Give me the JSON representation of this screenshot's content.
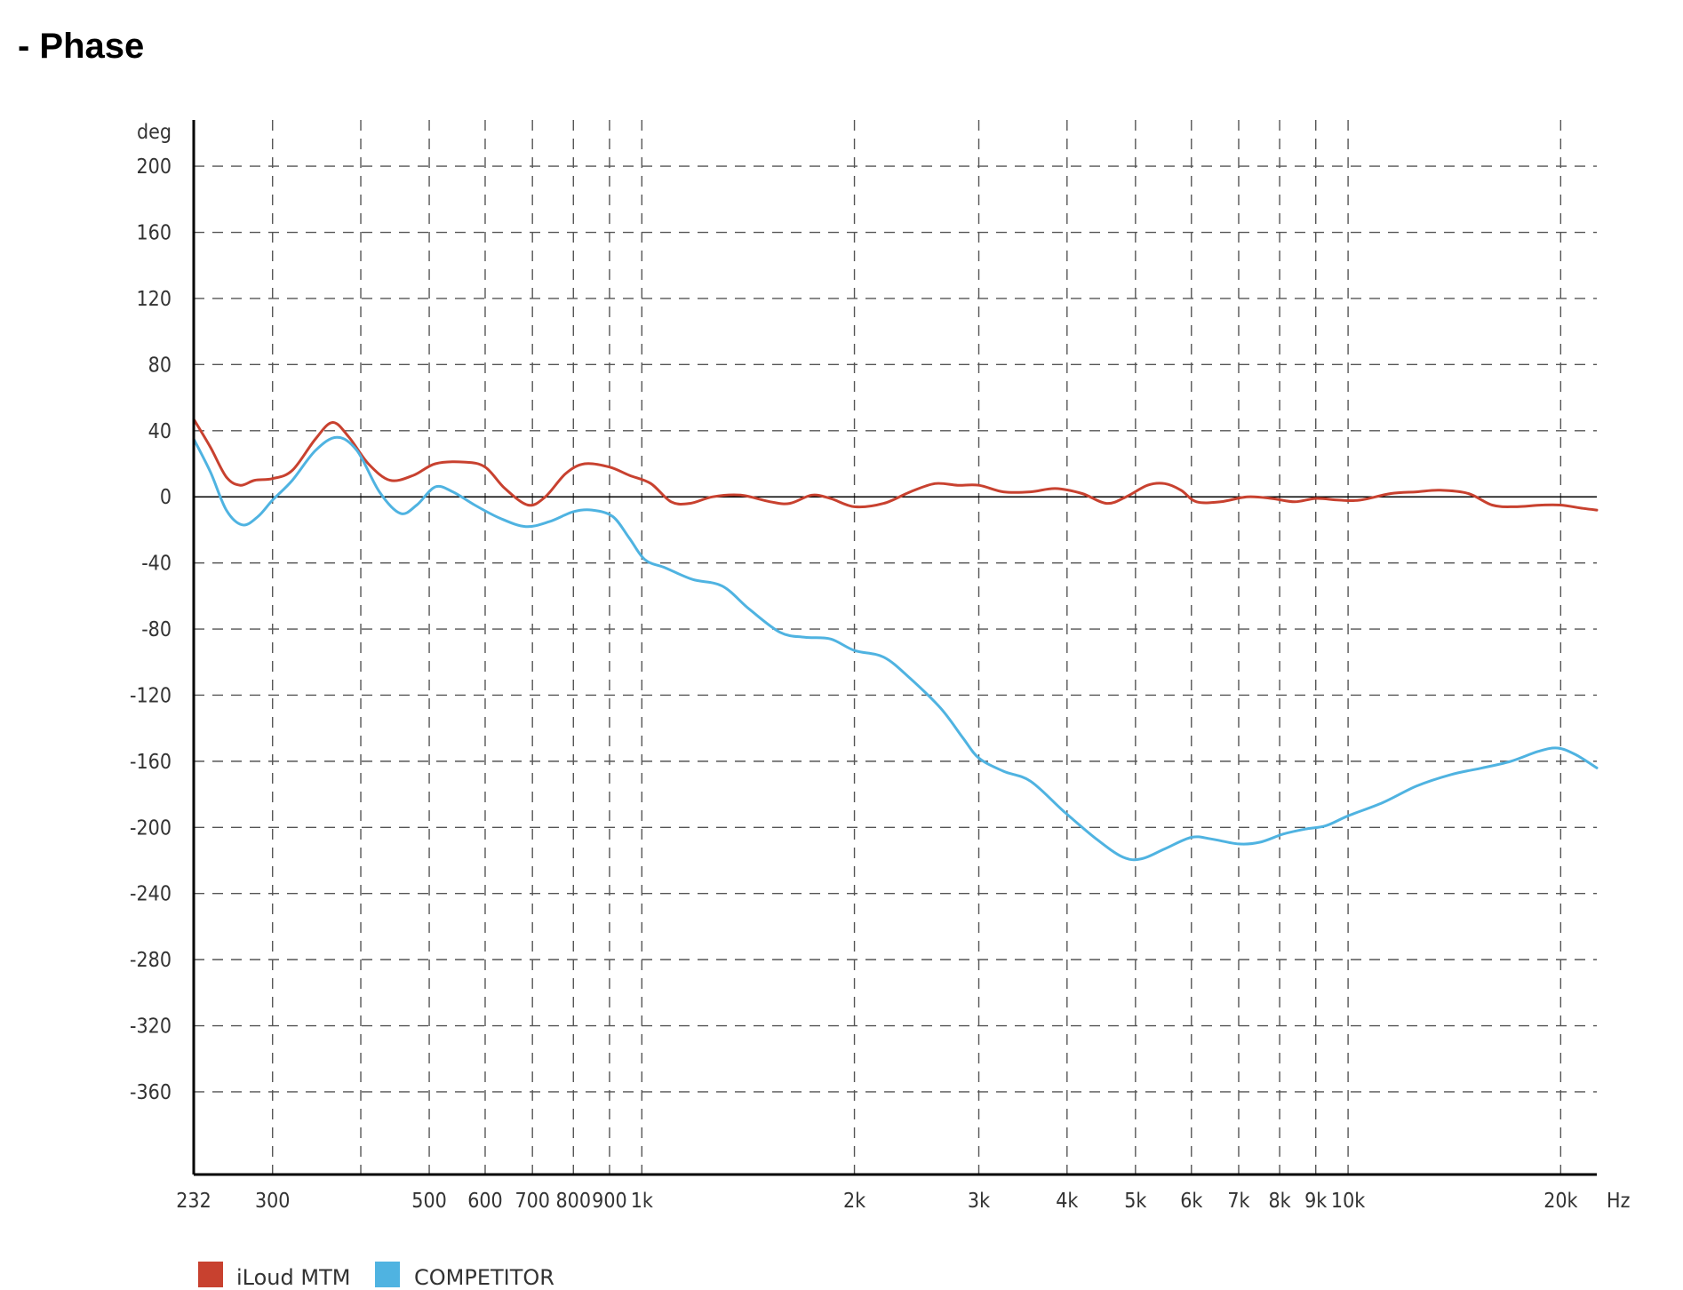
{
  "page": {
    "title": "- Phase"
  },
  "chart_data": {
    "type": "line",
    "title": "",
    "ylabel": "deg",
    "xlabel": "Hz",
    "x_scale": "log",
    "xlim": [
      232,
      22500
    ],
    "ylim": [
      -410,
      228
    ],
    "grid": true,
    "legend_position": "bottom-left",
    "y_ticks": [
      200,
      160,
      120,
      80,
      40,
      0,
      -40,
      -80,
      -120,
      -160,
      -200,
      -240,
      -280,
      -320,
      -360
    ],
    "x_ticks": [
      {
        "value": 232,
        "label": "232"
      },
      {
        "value": 300,
        "label": "300"
      },
      {
        "value": 400,
        "label": ""
      },
      {
        "value": 500,
        "label": "500"
      },
      {
        "value": 600,
        "label": "600"
      },
      {
        "value": 700,
        "label": "700"
      },
      {
        "value": 800,
        "label": "800"
      },
      {
        "value": 900,
        "label": "900"
      },
      {
        "value": 1000,
        "label": "1k"
      },
      {
        "value": 2000,
        "label": "2k"
      },
      {
        "value": 3000,
        "label": "3k"
      },
      {
        "value": 4000,
        "label": "4k"
      },
      {
        "value": 5000,
        "label": "5k"
      },
      {
        "value": 6000,
        "label": "6k"
      },
      {
        "value": 7000,
        "label": "7k"
      },
      {
        "value": 8000,
        "label": "8k"
      },
      {
        "value": 9000,
        "label": "9k"
      },
      {
        "value": 10000,
        "label": "10k"
      },
      {
        "value": 20000,
        "label": "20k"
      }
    ],
    "series": [
      {
        "name": "iLoud MTM",
        "color": "#c8412f",
        "points": [
          [
            232,
            47
          ],
          [
            245,
            30
          ],
          [
            258,
            12
          ],
          [
            270,
            7
          ],
          [
            283,
            10
          ],
          [
            300,
            11
          ],
          [
            320,
            16
          ],
          [
            345,
            35
          ],
          [
            365,
            45
          ],
          [
            385,
            36
          ],
          [
            410,
            20
          ],
          [
            440,
            10
          ],
          [
            475,
            13
          ],
          [
            510,
            20
          ],
          [
            560,
            21
          ],
          [
            600,
            18
          ],
          [
            640,
            5
          ],
          [
            690,
            -5
          ],
          [
            730,
            0
          ],
          [
            780,
            14
          ],
          [
            830,
            20
          ],
          [
            900,
            18
          ],
          [
            960,
            13
          ],
          [
            1030,
            8
          ],
          [
            1100,
            -3
          ],
          [
            1170,
            -4
          ],
          [
            1260,
            0
          ],
          [
            1380,
            1
          ],
          [
            1520,
            -3
          ],
          [
            1620,
            -4
          ],
          [
            1740,
            1
          ],
          [
            1850,
            -1
          ],
          [
            2000,
            -6
          ],
          [
            2200,
            -4
          ],
          [
            2400,
            3
          ],
          [
            2600,
            8
          ],
          [
            2800,
            7
          ],
          [
            3000,
            7
          ],
          [
            3250,
            3
          ],
          [
            3550,
            3
          ],
          [
            3850,
            5
          ],
          [
            4200,
            2
          ],
          [
            4550,
            -4
          ],
          [
            4850,
            0
          ],
          [
            5200,
            7
          ],
          [
            5500,
            8
          ],
          [
            5800,
            4
          ],
          [
            6100,
            -3
          ],
          [
            6600,
            -3
          ],
          [
            7200,
            0
          ],
          [
            7800,
            -1
          ],
          [
            8400,
            -3
          ],
          [
            9000,
            -1
          ],
          [
            9700,
            -2
          ],
          [
            10400,
            -2
          ],
          [
            11500,
            2
          ],
          [
            12500,
            3
          ],
          [
            13500,
            4
          ],
          [
            14800,
            2
          ],
          [
            16000,
            -5
          ],
          [
            17200,
            -6
          ],
          [
            18800,
            -5
          ],
          [
            20000,
            -5
          ],
          [
            21500,
            -7
          ],
          [
            22500,
            -8
          ]
        ]
      },
      {
        "name": "COMPETITOR",
        "color": "#4fb3e1",
        "points": [
          [
            232,
            35
          ],
          [
            245,
            15
          ],
          [
            258,
            -8
          ],
          [
            272,
            -17
          ],
          [
            286,
            -12
          ],
          [
            300,
            -2
          ],
          [
            320,
            10
          ],
          [
            345,
            28
          ],
          [
            370,
            36
          ],
          [
            395,
            28
          ],
          [
            425,
            3
          ],
          [
            455,
            -10
          ],
          [
            480,
            -5
          ],
          [
            510,
            6
          ],
          [
            540,
            3
          ],
          [
            580,
            -5
          ],
          [
            630,
            -13
          ],
          [
            685,
            -18
          ],
          [
            740,
            -15
          ],
          [
            800,
            -9
          ],
          [
            850,
            -8
          ],
          [
            910,
            -12
          ],
          [
            960,
            -25
          ],
          [
            1010,
            -38
          ],
          [
            1080,
            -43
          ],
          [
            1180,
            -50
          ],
          [
            1300,
            -54
          ],
          [
            1420,
            -68
          ],
          [
            1570,
            -82
          ],
          [
            1700,
            -85
          ],
          [
            1850,
            -86
          ],
          [
            2000,
            -93
          ],
          [
            2200,
            -97
          ],
          [
            2400,
            -110
          ],
          [
            2650,
            -128
          ],
          [
            2850,
            -146
          ],
          [
            3000,
            -158
          ],
          [
            3250,
            -166
          ],
          [
            3550,
            -172
          ],
          [
            3950,
            -190
          ],
          [
            4400,
            -207
          ],
          [
            4800,
            -218
          ],
          [
            5100,
            -219
          ],
          [
            5500,
            -213
          ],
          [
            6000,
            -206
          ],
          [
            6400,
            -207
          ],
          [
            7000,
            -210
          ],
          [
            7500,
            -209
          ],
          [
            8100,
            -204
          ],
          [
            8700,
            -201
          ],
          [
            9300,
            -199
          ],
          [
            10000,
            -193
          ],
          [
            11200,
            -185
          ],
          [
            12500,
            -175
          ],
          [
            14000,
            -168
          ],
          [
            15500,
            -164
          ],
          [
            17000,
            -160
          ],
          [
            18600,
            -154
          ],
          [
            19800,
            -152
          ],
          [
            21000,
            -156
          ],
          [
            22500,
            -164
          ]
        ]
      }
    ]
  }
}
